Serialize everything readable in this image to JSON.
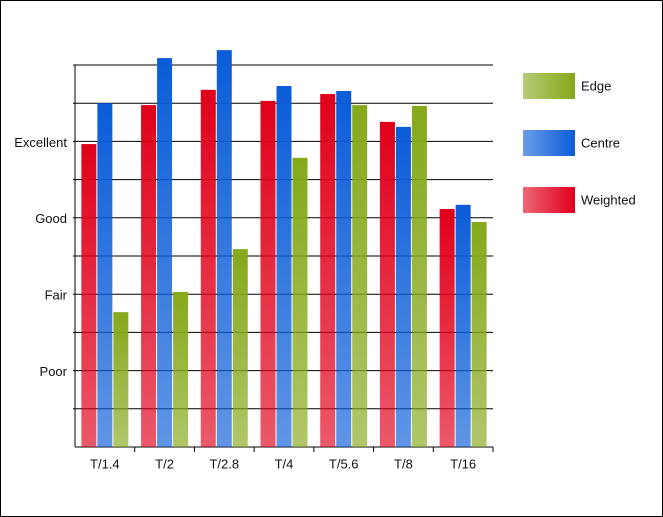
{
  "chart_data": {
    "type": "bar",
    "categories": [
      "T/1.4",
      "T/2",
      "T/2.8",
      "T/4",
      "T/5.6",
      "T/8",
      "T/16"
    ],
    "series": [
      {
        "name": "Weighted",
        "color": "#e0001a",
        "values": [
          7.93,
          8.95,
          9.35,
          9.06,
          9.24,
          8.51,
          6.23
        ]
      },
      {
        "name": "Centre",
        "color": "#0a5cd8",
        "values": [
          9.0,
          10.18,
          10.39,
          9.45,
          9.32,
          8.38,
          6.34
        ]
      },
      {
        "name": "Edge",
        "color": "#86a81a",
        "values": [
          3.53,
          4.06,
          5.18,
          7.57,
          8.95,
          8.93,
          5.89
        ]
      }
    ],
    "ylim": [
      0,
      10
    ],
    "yticks": [
      {
        "value": 1,
        "label": null
      },
      {
        "value": 2,
        "label": "Poor"
      },
      {
        "value": 3,
        "label": null
      },
      {
        "value": 4,
        "label": "Fair"
      },
      {
        "value": 5,
        "label": null
      },
      {
        "value": 6,
        "label": "Good"
      },
      {
        "value": 7,
        "label": null
      },
      {
        "value": 8,
        "label": "Excellent"
      },
      {
        "value": 9,
        "label": null
      },
      {
        "value": 10,
        "label": null
      }
    ],
    "grid": true,
    "legend": "right"
  }
}
